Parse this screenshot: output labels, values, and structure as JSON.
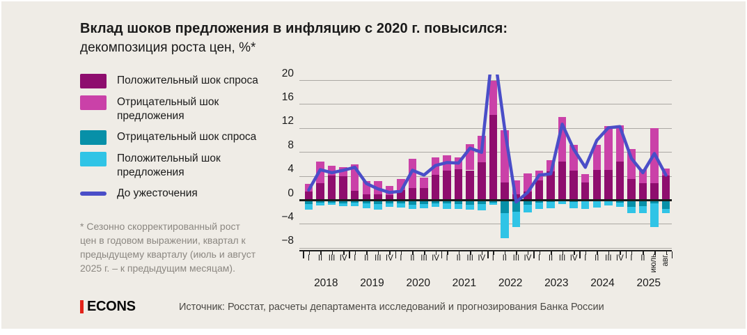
{
  "title": {
    "bold": "Вклад шоков предложения в инфляцию с 2020 г. повысился:",
    "regular": "декомпозиция роста цен, %*"
  },
  "legend": [
    {
      "label": "Положительный шок спроса",
      "color": "#8E0D6E",
      "kind": "box"
    },
    {
      "label": "Отрицательный шок предложения",
      "color": "#CA41A8",
      "kind": "box"
    },
    {
      "label": "Отрицательный шок спроса",
      "color": "#0790A8",
      "kind": "box"
    },
    {
      "label": "Положительный шок предложения",
      "color": "#30C4E6",
      "kind": "box"
    },
    {
      "label": "До ужесточения",
      "color": "#4A4EC8",
      "kind": "line"
    }
  ],
  "footnote": "* Сезонно скорректированный рост цен в годовом выражении, квартал к предыдущему кварталу (июль и август 2025 г. – к предыдущим месяцам).",
  "footer": {
    "logo": "ECONS",
    "logo_bar_color": "#E3231A",
    "source": "Источник: Росстат, расчеты департамента исследований и прогнозирования Банка России"
  },
  "colors": {
    "background": "#EFECE6",
    "gridline": "#ABA8A3",
    "zero_line": "#1B1B1B",
    "positive_demand": "#8E0D6E",
    "negative_supply": "#CA41A8",
    "negative_demand": "#0790A8",
    "positive_supply": "#30C4E6",
    "line": "#4A4EC8"
  },
  "chart_data": {
    "type": "bar",
    "subtype": "stacked-bars-with-line",
    "title": "Вклад шоков предложения в инфляцию с 2020 г. повысился: декомпозиция роста цен, %",
    "ylim": [
      -8.6,
      20.9
    ],
    "y_ticks": [
      {
        "v": 20,
        "label": "20"
      },
      {
        "v": 16,
        "label": "16"
      },
      {
        "v": 12,
        "label": "12"
      },
      {
        "v": 8,
        "label": "8"
      },
      {
        "v": 4,
        "label": "4"
      },
      {
        "v": 0,
        "label": "0"
      },
      {
        "v": -4,
        "label": "−4"
      },
      {
        "v": -8,
        "label": "−8"
      }
    ],
    "grid": true,
    "legend_position": "left",
    "years": [
      "2018",
      "2019",
      "2020",
      "2021",
      "2022",
      "2023",
      "2024",
      "2025"
    ],
    "x_labels": [
      "I",
      "II",
      "III",
      "IV",
      "I",
      "II",
      "III",
      "IV",
      "I",
      "II",
      "III",
      "IV",
      "I",
      "II",
      "III",
      "IV",
      "I",
      "II",
      "III",
      "IV",
      "I",
      "II",
      "III",
      "IV",
      "I",
      "II",
      "III",
      "IV",
      "I",
      "II",
      "июль",
      "авг."
    ],
    "rotated_labels": [
      "июль",
      "авг."
    ],
    "series": [
      {
        "name": "Положительный шок спроса",
        "color": "#8E0D6E",
        "stack": "positive",
        "values": [
          1.4,
          2.9,
          4.1,
          4.0,
          1.6,
          1.0,
          0.95,
          0.9,
          1.7,
          2.0,
          2.0,
          4.2,
          4.9,
          5.2,
          5.0,
          6.3,
          14.2,
          3.0,
          1.0,
          1.5,
          3.3,
          4.8,
          6.5,
          4.9,
          3.0,
          5.1,
          5.1,
          6.4,
          3.6,
          2.8,
          2.9,
          4.1
        ]
      },
      {
        "name": "Отрицательный шок предложения",
        "color": "#CA41A8",
        "stack": "positive",
        "values": [
          1.3,
          3.6,
          1.7,
          1.5,
          4.4,
          2.2,
          2.2,
          1.5,
          1.9,
          4.9,
          1.8,
          3.0,
          2.6,
          2.0,
          4.4,
          4.5,
          5.8,
          8.7,
          2.3,
          3.0,
          1.6,
          1.9,
          7.4,
          4.3,
          1.4,
          4.1,
          7.3,
          6.1,
          5.0,
          2.4,
          9.1,
          1.2
        ]
      },
      {
        "name": "Отрицательный шок спроса",
        "color": "#0790A8",
        "stack": "negative",
        "values": [
          -0.6,
          -0.45,
          -0.4,
          -0.5,
          -0.4,
          -0.55,
          -0.6,
          -0.55,
          -0.5,
          -0.7,
          -0.6,
          -0.5,
          -0.5,
          -0.6,
          -0.8,
          -0.6,
          -0.4,
          -2.1,
          -1.9,
          -0.7,
          -0.4,
          -0.3,
          -0.2,
          -0.3,
          -0.2,
          -0.2,
          -0.2,
          -0.4,
          -1.1,
          -1.0,
          -0.5,
          -1.4
        ]
      },
      {
        "name": "Положительный шок предложения",
        "color": "#30C4E6",
        "stack": "negative",
        "values": [
          -1.0,
          -0.45,
          -0.4,
          -0.5,
          -0.6,
          -0.8,
          -1.0,
          -0.6,
          -0.7,
          -0.7,
          -0.7,
          -0.6,
          -0.9,
          -0.9,
          -0.8,
          -1.1,
          -0.4,
          -4.2,
          -2.6,
          -1.3,
          -1.0,
          -1.0,
          -0.4,
          -1.0,
          -1.2,
          -1.0,
          -0.7,
          -0.7,
          -1.0,
          -1.2,
          -4.0,
          -0.8
        ]
      },
      {
        "name": "До ужесточения",
        "color": "#4A4EC8",
        "type": "line",
        "values": [
          1.7,
          5.1,
          4.6,
          5.0,
          5.5,
          2.8,
          1.9,
          1.3,
          1.5,
          5.0,
          4.2,
          5.8,
          6.3,
          6.2,
          8.7,
          8.0,
          26,
          12,
          -0.3,
          1.3,
          4.2,
          4.4,
          12.7,
          8.5,
          5.5,
          10.0,
          12.1,
          12.3,
          7.0,
          4.6,
          7.8,
          4.2
        ]
      }
    ]
  }
}
